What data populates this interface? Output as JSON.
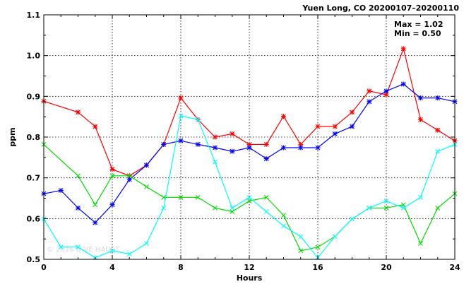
{
  "header": {
    "title": "Yuen Long, CO 20200107–20200110",
    "max_label": "Max = 1.02",
    "min_label": "Min = 0.50"
  },
  "watermark": "© 2016 DIVE HAUST",
  "chart_data": {
    "type": "line",
    "title": "Yuen Long, CO 20200107–20200110",
    "xlabel": "Hours",
    "ylabel": "ppm",
    "xlim": [
      0,
      24
    ],
    "ylim": [
      0.5,
      1.1
    ],
    "x_ticks": [
      0,
      4,
      8,
      12,
      16,
      20,
      24
    ],
    "x_tick_labels": [
      "0",
      "4",
      "8",
      "12",
      "16",
      "20",
      "24"
    ],
    "y_ticks": [
      0.5,
      0.6,
      0.7,
      0.8,
      0.9,
      1.0,
      1.1
    ],
    "y_tick_labels": [
      "0.5",
      "0.6",
      "0.7",
      "0.8",
      "0.9",
      "1.0",
      "1.1"
    ],
    "grid": true,
    "series": [
      {
        "color": "#ff0000",
        "marker": "star",
        "points": [
          [
            0,
            0.888
          ],
          [
            2,
            0.861
          ],
          [
            3,
            0.826
          ],
          [
            4,
            0.721
          ],
          [
            5,
            0.705
          ],
          [
            6,
            0.731
          ],
          [
            7,
            0.782
          ],
          [
            8,
            0.896
          ],
          [
            9,
            0.843
          ],
          [
            10,
            0.8
          ],
          [
            11,
            0.808
          ],
          [
            12,
            0.782
          ],
          [
            13,
            0.782
          ],
          [
            14,
            0.851
          ],
          [
            15,
            0.782
          ],
          [
            16,
            0.826
          ],
          [
            17,
            0.826
          ],
          [
            18,
            0.861
          ],
          [
            19,
            0.913
          ],
          [
            20,
            0.904
          ],
          [
            21,
            1.017
          ],
          [
            22,
            0.843
          ],
          [
            23,
            0.817
          ],
          [
            24,
            0.791
          ]
        ]
      },
      {
        "color": "#0000ff",
        "marker": "star",
        "points": [
          [
            0,
            0.661
          ],
          [
            1,
            0.669
          ],
          [
            2,
            0.626
          ],
          [
            3,
            0.59
          ],
          [
            4,
            0.634
          ],
          [
            5,
            0.696
          ],
          [
            6,
            0.731
          ],
          [
            7,
            0.782
          ],
          [
            8,
            0.791
          ],
          [
            9,
            0.782
          ],
          [
            10,
            0.774
          ],
          [
            11,
            0.765
          ],
          [
            12,
            0.774
          ],
          [
            13,
            0.747
          ],
          [
            14,
            0.774
          ],
          [
            15,
            0.774
          ],
          [
            16,
            0.774
          ],
          [
            17,
            0.808
          ],
          [
            18,
            0.826
          ],
          [
            19,
            0.887
          ],
          [
            20,
            0.913
          ],
          [
            21,
            0.93
          ],
          [
            22,
            0.896
          ],
          [
            23,
            0.896
          ],
          [
            24,
            0.887
          ]
        ]
      },
      {
        "color": "#00dd00",
        "marker": "x",
        "points": [
          [
            0,
            0.782
          ],
          [
            2,
            0.705
          ],
          [
            3,
            0.634
          ],
          [
            4,
            0.705
          ],
          [
            5,
            0.705
          ],
          [
            6,
            0.678
          ],
          [
            7,
            0.652
          ],
          [
            8,
            0.652
          ],
          [
            9,
            0.652
          ],
          [
            10,
            0.626
          ],
          [
            11,
            0.617
          ],
          [
            12,
            0.643
          ],
          [
            13,
            0.652
          ],
          [
            14,
            0.608
          ],
          [
            15,
            0.521
          ],
          [
            16,
            0.53
          ],
          [
            17,
            0.556
          ],
          [
            18,
            0.599
          ],
          [
            19,
            0.626
          ],
          [
            20,
            0.626
          ],
          [
            21,
            0.634
          ],
          [
            22,
            0.539
          ],
          [
            23,
            0.626
          ],
          [
            24,
            0.661
          ]
        ]
      },
      {
        "color": "#00ffff",
        "marker": "x",
        "points": [
          [
            0,
            0.599
          ],
          [
            1,
            0.53
          ],
          [
            2,
            0.53
          ],
          [
            3,
            0.504
          ],
          [
            4,
            0.521
          ],
          [
            5,
            0.513
          ],
          [
            6,
            0.539
          ],
          [
            7,
            0.626
          ],
          [
            8,
            0.852
          ],
          [
            9,
            0.843
          ],
          [
            10,
            0.739
          ],
          [
            11,
            0.626
          ],
          [
            12,
            0.652
          ],
          [
            13,
            0.617
          ],
          [
            14,
            0.582
          ],
          [
            15,
            0.556
          ],
          [
            16,
            0.504
          ],
          [
            17,
            0.556
          ],
          [
            18,
            0.599
          ],
          [
            19,
            0.626
          ],
          [
            20,
            0.643
          ],
          [
            21,
            0.626
          ],
          [
            22,
            0.652
          ],
          [
            23,
            0.765
          ],
          [
            24,
            0.782
          ]
        ]
      }
    ]
  }
}
